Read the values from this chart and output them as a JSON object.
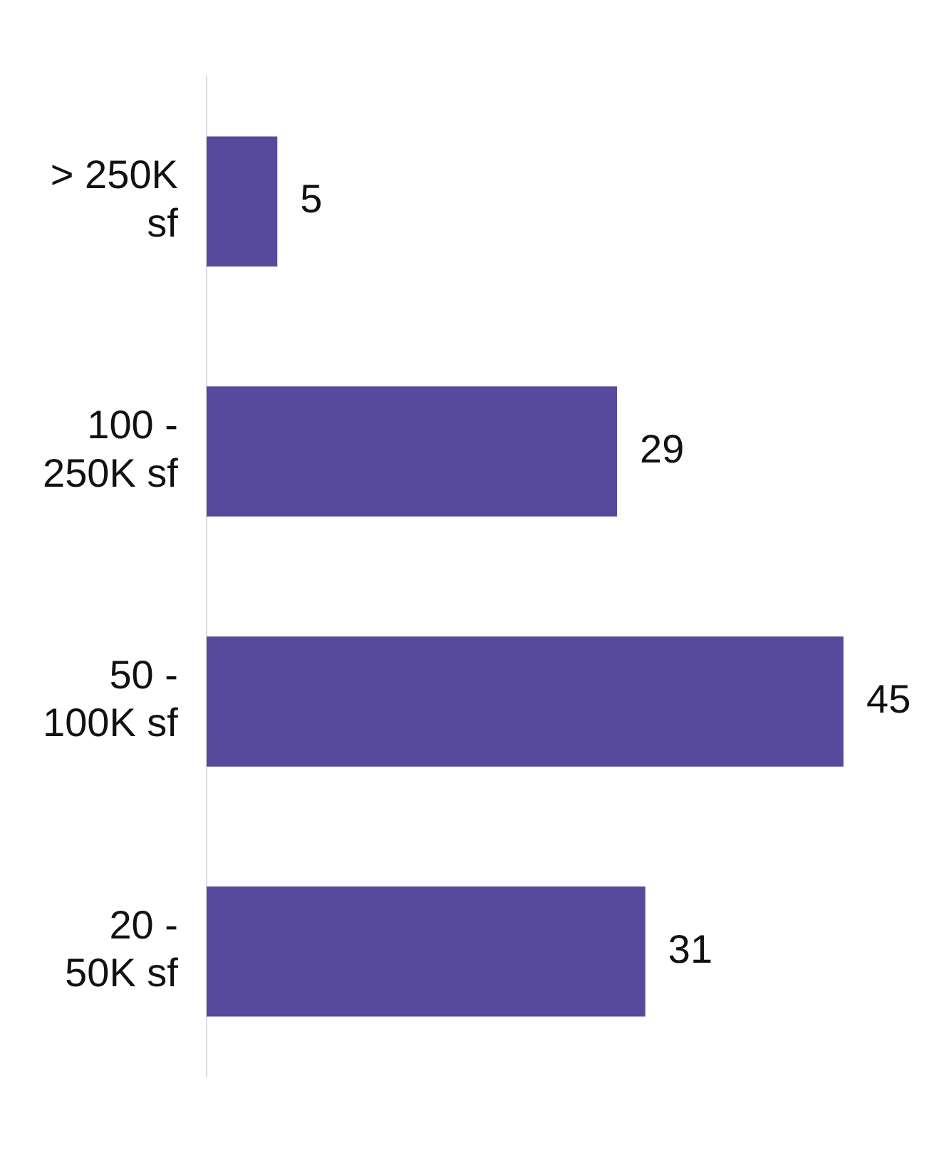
{
  "chart_data": {
    "type": "bar",
    "orientation": "horizontal",
    "categories": [
      "> 250K sf",
      "100 - 250K sf",
      "50 - 100K sf",
      "20 - 50K sf"
    ],
    "values": [
      5,
      29,
      45,
      31
    ],
    "color": "#574a9c",
    "data_labels": true
  }
}
